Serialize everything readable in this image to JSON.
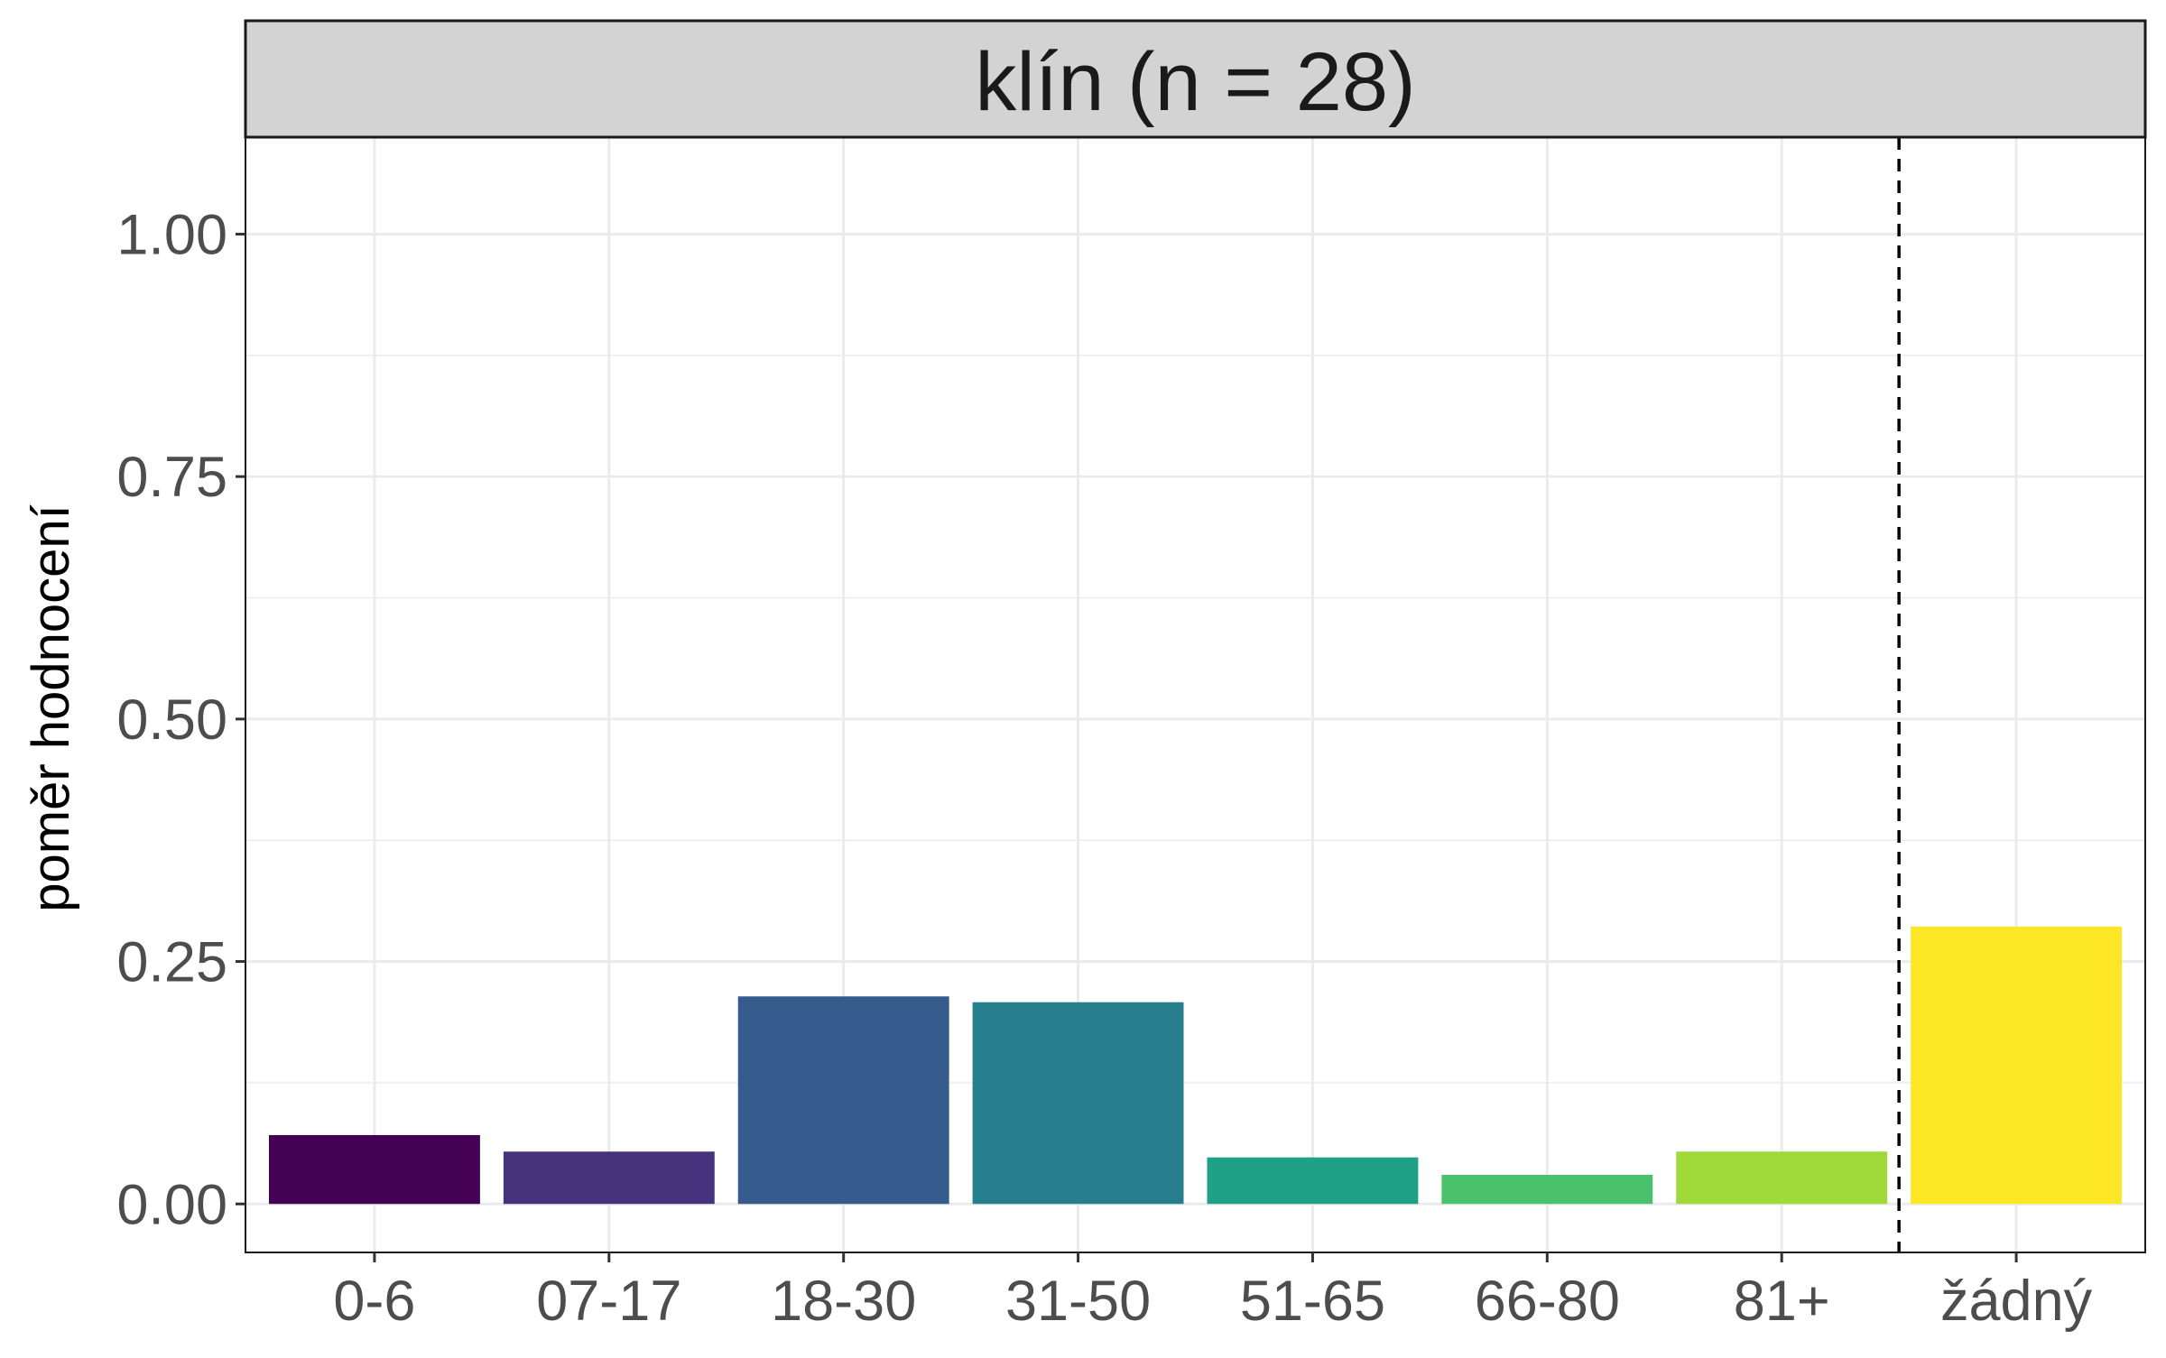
{
  "chart_data": {
    "type": "bar",
    "title": "klín (n = 28)",
    "xlabel": "",
    "ylabel": "poměr hodnocení",
    "categories": [
      "0-6",
      "07-17",
      "18-30",
      "31-50",
      "51-65",
      "66-80",
      "81+",
      "žádný"
    ],
    "values": [
      0.071,
      0.054,
      0.214,
      0.208,
      0.048,
      0.03,
      0.054,
      0.286
    ],
    "colors": [
      "#440154",
      "#46337E",
      "#365C8D",
      "#277F8E",
      "#1FA187",
      "#4AC16D",
      "#9FDA3A",
      "#FDE725"
    ],
    "ylim": [
      -0.05,
      1.1
    ],
    "yticks": [
      "0.00",
      "0.25",
      "0.50",
      "0.75",
      "1.00"
    ],
    "ytick_values": [
      0,
      0.25,
      0.5,
      0.75,
      1.0
    ],
    "grid": true,
    "divider_line": "dashed vertical line between 81+ and žádný"
  }
}
